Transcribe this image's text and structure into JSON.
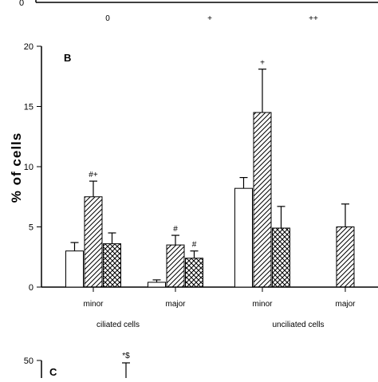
{
  "panel_a_partial": {
    "x_tick_labels": [
      "0",
      "+",
      "++"
    ],
    "y_tick_label": "0"
  },
  "panel_c_partial": {
    "panel_label": "C",
    "y_tick_label": "50",
    "annotation": "*$"
  },
  "chart_data": {
    "type": "bar",
    "panel_label": "B",
    "ylabel": "% of cells",
    "ylim": [
      0,
      20
    ],
    "y_ticks": [
      0,
      5,
      10,
      15,
      20
    ],
    "grid": false,
    "group_labels": [
      "ciliated cells",
      "unciliated cells"
    ],
    "categories": [
      "minor",
      "major",
      "minor",
      "major"
    ],
    "category_group": [
      0,
      0,
      1,
      1
    ],
    "series": [
      {
        "pattern": "open",
        "values": [
          3.0,
          0.4,
          8.2,
          0
        ],
        "errors": [
          0.7,
          0.2,
          0.9,
          0
        ]
      },
      {
        "pattern": "hatched",
        "values": [
          7.5,
          3.5,
          14.5,
          5.0
        ],
        "errors": [
          1.3,
          0.8,
          3.6,
          1.9
        ]
      },
      {
        "pattern": "crosshatch",
        "values": [
          3.6,
          2.4,
          4.9,
          0
        ],
        "errors": [
          0.9,
          0.6,
          1.8,
          0
        ]
      }
    ],
    "annotations": [
      {
        "category": 0,
        "series": 1,
        "text": "#+"
      },
      {
        "category": 1,
        "series": 1,
        "text": "#"
      },
      {
        "category": 1,
        "series": 2,
        "text": "#"
      },
      {
        "category": 2,
        "series": 1,
        "text": "+"
      }
    ]
  }
}
